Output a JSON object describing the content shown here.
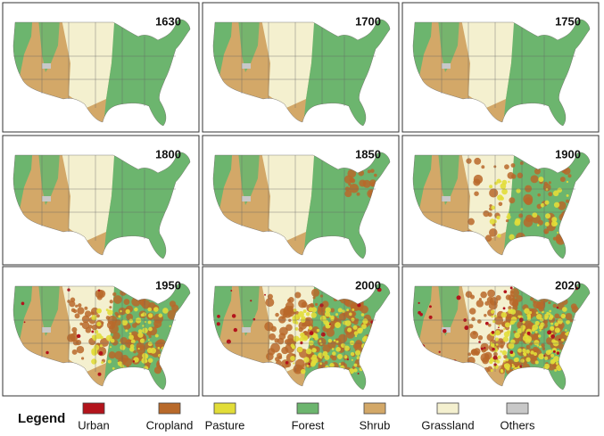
{
  "panels": [
    {
      "year": "1630"
    },
    {
      "year": "1700"
    },
    {
      "year": "1750"
    },
    {
      "year": "1800"
    },
    {
      "year": "1850"
    },
    {
      "year": "1900"
    },
    {
      "year": "1950"
    },
    {
      "year": "2000"
    },
    {
      "year": "2020"
    }
  ],
  "legend": {
    "title": "Legend",
    "items": [
      {
        "label": "Urban",
        "color": "#b3141c"
      },
      {
        "label": "Cropland",
        "color": "#b8692a"
      },
      {
        "label": "Pasture",
        "color": "#e2dd38"
      },
      {
        "label": "Forest",
        "color": "#6cb56e"
      },
      {
        "label": "Shrub",
        "color": "#d3a868"
      },
      {
        "label": "Grassland",
        "color": "#f4f0cf"
      },
      {
        "label": "Others",
        "color": "#c8c8c8"
      }
    ]
  }
}
